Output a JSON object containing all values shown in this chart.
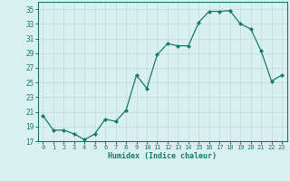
{
  "x": [
    0,
    1,
    2,
    3,
    4,
    5,
    6,
    7,
    8,
    9,
    10,
    11,
    12,
    13,
    14,
    15,
    16,
    17,
    18,
    19,
    20,
    21,
    22,
    23
  ],
  "y": [
    20.5,
    18.5,
    18.5,
    18.0,
    17.2,
    18.0,
    20.0,
    19.7,
    21.2,
    26.0,
    24.2,
    28.8,
    30.3,
    30.0,
    30.0,
    33.2,
    34.7,
    34.7,
    34.8,
    33.0,
    32.3,
    29.3,
    25.2,
    26.0
  ],
  "xlabel": "Humidex (Indice chaleur)",
  "ylim": [
    17,
    36
  ],
  "xlim": [
    -0.5,
    23.5
  ],
  "yticks": [
    17,
    19,
    21,
    23,
    25,
    27,
    29,
    31,
    33,
    35
  ],
  "xticks": [
    0,
    1,
    2,
    3,
    4,
    5,
    6,
    7,
    8,
    9,
    10,
    11,
    12,
    13,
    14,
    15,
    16,
    17,
    18,
    19,
    20,
    21,
    22,
    23
  ],
  "line_color": "#1a7a6a",
  "marker_color": "#1a7a6a",
  "bg_color": "#d9f0f0",
  "grid_color": "#c0dada",
  "axes_color": "#1a7a6a",
  "tick_color": "#1a7a6a",
  "xlabel_color": "#1a7a6a"
}
